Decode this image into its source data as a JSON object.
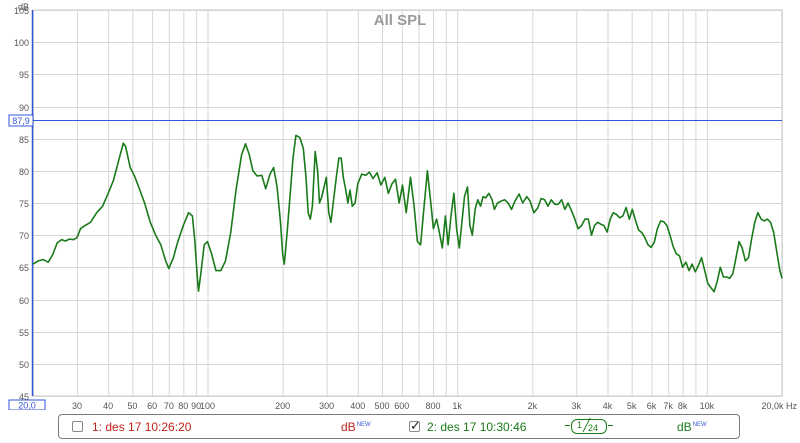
{
  "chart_data": {
    "type": "line",
    "title": "All SPL",
    "x_scale": "log",
    "xlim": [
      20,
      20000
    ],
    "ylim": [
      45,
      105
    ],
    "y_unit": "dB",
    "x_unit": "Hz",
    "grid": true,
    "y_ticks": [
      "45",
      "50",
      "55",
      "60",
      "65",
      "70",
      "75",
      "80",
      "85",
      "90",
      "95",
      "100",
      "105"
    ],
    "x_ticks": [
      {
        "v": 30,
        "label": "30"
      },
      {
        "v": 40,
        "label": "40"
      },
      {
        "v": 50,
        "label": "50"
      },
      {
        "v": 60,
        "label": "60"
      },
      {
        "v": 70,
        "label": "70"
      },
      {
        "v": 80,
        "label": "80"
      },
      {
        "v": 90,
        "label": "90"
      },
      {
        "v": 100,
        "label": "100"
      },
      {
        "v": 200,
        "label": "200"
      },
      {
        "v": 300,
        "label": "300"
      },
      {
        "v": 400,
        "label": "400"
      },
      {
        "v": 500,
        "label": "500"
      },
      {
        "v": 600,
        "label": "600"
      },
      {
        "v": 800,
        "label": "800"
      },
      {
        "v": 1000,
        "label": "1k"
      },
      {
        "v": 2000,
        "label": "2k"
      },
      {
        "v": 3000,
        "label": "3k"
      },
      {
        "v": 4000,
        "label": "4k"
      },
      {
        "v": 5000,
        "label": "5k"
      },
      {
        "v": 6000,
        "label": "6k"
      },
      {
        "v": 7000,
        "label": "7k"
      },
      {
        "v": 8000,
        "label": "8k"
      },
      {
        "v": 10000,
        "label": "10k"
      }
    ],
    "x_left_readout": "20,0",
    "x_right_label": "20,0k Hz",
    "cursor_level": 87.9,
    "cursor_label": "87,9",
    "series": [
      {
        "color": "#1a7a1a",
        "points": [
          [
            20,
            65.5
          ],
          [
            21,
            66
          ],
          [
            22,
            66.2
          ],
          [
            23,
            65.8
          ],
          [
            24,
            67
          ],
          [
            25,
            68.8
          ],
          [
            26,
            69.3
          ],
          [
            27,
            69.1
          ],
          [
            28,
            69.4
          ],
          [
            29,
            69.3
          ],
          [
            30,
            69.6
          ],
          [
            31,
            71
          ],
          [
            32,
            71.4
          ],
          [
            34,
            72
          ],
          [
            36,
            73.5
          ],
          [
            38,
            74.5
          ],
          [
            40,
            76.5
          ],
          [
            42,
            78.5
          ],
          [
            44,
            81.5
          ],
          [
            46,
            84.3
          ],
          [
            47,
            83.8
          ],
          [
            49,
            80.5
          ],
          [
            51,
            79.2
          ],
          [
            53,
            77.5
          ],
          [
            56,
            75
          ],
          [
            59,
            72
          ],
          [
            62,
            70
          ],
          [
            65,
            68.5
          ],
          [
            68,
            66
          ],
          [
            70,
            64.8
          ],
          [
            73,
            66.5
          ],
          [
            76,
            69
          ],
          [
            80,
            71.5
          ],
          [
            84,
            73.5
          ],
          [
            87,
            73
          ],
          [
            89,
            69
          ],
          [
            91,
            63.5
          ],
          [
            92,
            61.3
          ],
          [
            94,
            64
          ],
          [
            97,
            68.5
          ],
          [
            100,
            69
          ],
          [
            104,
            67
          ],
          [
            108,
            64.5
          ],
          [
            113,
            64.5
          ],
          [
            118,
            66
          ],
          [
            124,
            70.5
          ],
          [
            130,
            77
          ],
          [
            137,
            82.5
          ],
          [
            142,
            84.2
          ],
          [
            147,
            82.5
          ],
          [
            152,
            80
          ],
          [
            158,
            79.2
          ],
          [
            165,
            79.3
          ],
          [
            171,
            77.2
          ],
          [
            178,
            79.5
          ],
          [
            184,
            80.5
          ],
          [
            190,
            77.5
          ],
          [
            196,
            72
          ],
          [
            200,
            67
          ],
          [
            203,
            65.5
          ],
          [
            208,
            70
          ],
          [
            214,
            76
          ],
          [
            220,
            82
          ],
          [
            226,
            85.5
          ],
          [
            234,
            85.2
          ],
          [
            242,
            83.5
          ],
          [
            248,
            79
          ],
          [
            253,
            73.5
          ],
          [
            258,
            72.5
          ],
          [
            263,
            74.5
          ],
          [
            270,
            83
          ],
          [
            276,
            80
          ],
          [
            281,
            75
          ],
          [
            287,
            76
          ],
          [
            293,
            77.5
          ],
          [
            299,
            79
          ],
          [
            306,
            73.5
          ],
          [
            312,
            72
          ],
          [
            320,
            75.5
          ],
          [
            328,
            79
          ],
          [
            336,
            82
          ],
          [
            343,
            82
          ],
          [
            350,
            79
          ],
          [
            358,
            77
          ],
          [
            365,
            75
          ],
          [
            372,
            77
          ],
          [
            380,
            74.5
          ],
          [
            390,
            75
          ],
          [
            400,
            78
          ],
          [
            415,
            79.5
          ],
          [
            430,
            79.3
          ],
          [
            445,
            79.8
          ],
          [
            460,
            78.8
          ],
          [
            478,
            79.7
          ],
          [
            495,
            77.8
          ],
          [
            513,
            79
          ],
          [
            530,
            76.5
          ],
          [
            548,
            78
          ],
          [
            566,
            78.7
          ],
          [
            586,
            75
          ],
          [
            604,
            77.8
          ],
          [
            625,
            73.5
          ],
          [
            650,
            79
          ],
          [
            672,
            74.5
          ],
          [
            693,
            69
          ],
          [
            714,
            68.5
          ],
          [
            737,
            74.5
          ],
          [
            760,
            80
          ],
          [
            784,
            75
          ],
          [
            803,
            71
          ],
          [
            827,
            72.5
          ],
          [
            848,
            70.5
          ],
          [
            872,
            68
          ],
          [
            897,
            73
          ],
          [
            920,
            68.5
          ],
          [
            945,
            73
          ],
          [
            970,
            76.5
          ],
          [
            995,
            71
          ],
          [
            1020,
            68
          ],
          [
            1045,
            72
          ],
          [
            1070,
            76
          ],
          [
            1100,
            77.5
          ],
          [
            1125,
            71.5
          ],
          [
            1150,
            70
          ],
          [
            1180,
            74
          ],
          [
            1210,
            75.5
          ],
          [
            1240,
            74.5
          ],
          [
            1270,
            76
          ],
          [
            1300,
            75.8
          ],
          [
            1340,
            76.5
          ],
          [
            1380,
            75.5
          ],
          [
            1410,
            74
          ],
          [
            1450,
            75
          ],
          [
            1500,
            75.3
          ],
          [
            1550,
            75.5
          ],
          [
            1600,
            75
          ],
          [
            1650,
            74
          ],
          [
            1700,
            75.2
          ],
          [
            1770,
            76.4
          ],
          [
            1830,
            75
          ],
          [
            1900,
            76
          ],
          [
            1960,
            75.3
          ],
          [
            2030,
            73.5
          ],
          [
            2100,
            74.2
          ],
          [
            2170,
            75.7
          ],
          [
            2240,
            75.5
          ],
          [
            2310,
            74.5
          ],
          [
            2380,
            75.5
          ],
          [
            2460,
            74.8
          ],
          [
            2540,
            74.8
          ],
          [
            2620,
            75.5
          ],
          [
            2700,
            74
          ],
          [
            2780,
            75
          ],
          [
            2870,
            73.8
          ],
          [
            2960,
            72.5
          ],
          [
            3050,
            71
          ],
          [
            3150,
            71.5
          ],
          [
            3250,
            72.5
          ],
          [
            3350,
            72.5
          ],
          [
            3450,
            70
          ],
          [
            3550,
            71.5
          ],
          [
            3650,
            72
          ],
          [
            3760,
            71.7
          ],
          [
            3870,
            71.5
          ],
          [
            3990,
            70.5
          ],
          [
            4100,
            72.5
          ],
          [
            4220,
            73.5
          ],
          [
            4350,
            73.2
          ],
          [
            4480,
            72.7
          ],
          [
            4610,
            73
          ],
          [
            4750,
            74.3
          ],
          [
            4890,
            72.5
          ],
          [
            5030,
            74
          ],
          [
            5180,
            72.3
          ],
          [
            5330,
            70.8
          ],
          [
            5490,
            70.4
          ],
          [
            5650,
            69.6
          ],
          [
            5810,
            68.5
          ],
          [
            5980,
            68.1
          ],
          [
            6160,
            68.9
          ],
          [
            6340,
            71
          ],
          [
            6530,
            72.2
          ],
          [
            6720,
            72.1
          ],
          [
            6920,
            71.5
          ],
          [
            7120,
            70
          ],
          [
            7330,
            68.2
          ],
          [
            7550,
            67.1
          ],
          [
            7770,
            66.8
          ],
          [
            8000,
            65
          ],
          [
            8240,
            65.8
          ],
          [
            8480,
            64.5
          ],
          [
            8730,
            65.5
          ],
          [
            8990,
            64.3
          ],
          [
            9250,
            65.3
          ],
          [
            9520,
            66.5
          ],
          [
            9800,
            64.5
          ],
          [
            10090,
            62.5
          ],
          [
            10390,
            61.8
          ],
          [
            10690,
            61.2
          ],
          [
            11000,
            62.8
          ],
          [
            11320,
            65
          ],
          [
            11650,
            63.5
          ],
          [
            12000,
            63.5
          ],
          [
            12350,
            63.3
          ],
          [
            12710,
            64
          ],
          [
            13080,
            66.5
          ],
          [
            13470,
            69
          ],
          [
            13860,
            68
          ],
          [
            14270,
            66
          ],
          [
            14690,
            66.5
          ],
          [
            15120,
            69.5
          ],
          [
            15560,
            72
          ],
          [
            16020,
            73.5
          ],
          [
            16490,
            72.5
          ],
          [
            16970,
            72.2
          ],
          [
            17470,
            72.5
          ],
          [
            17980,
            72
          ],
          [
            18510,
            70.5
          ],
          [
            19050,
            67.5
          ],
          [
            19610,
            64.5
          ],
          [
            20000,
            63.3
          ]
        ]
      }
    ]
  },
  "legend": {
    "m1_label": "1: des 17 10:26:20",
    "m1_color": "#c0231a",
    "m1_checked": false,
    "m1_units": "dB",
    "m1_units_sup": "NEW",
    "m2_label": "2: des 17 10:30:46",
    "m2_color": "#1a7a1a",
    "m2_checked": true,
    "m2_units": "dB",
    "m2_units_sup": "NEW",
    "smoothing_num": "1",
    "smoothing_den": "24"
  }
}
